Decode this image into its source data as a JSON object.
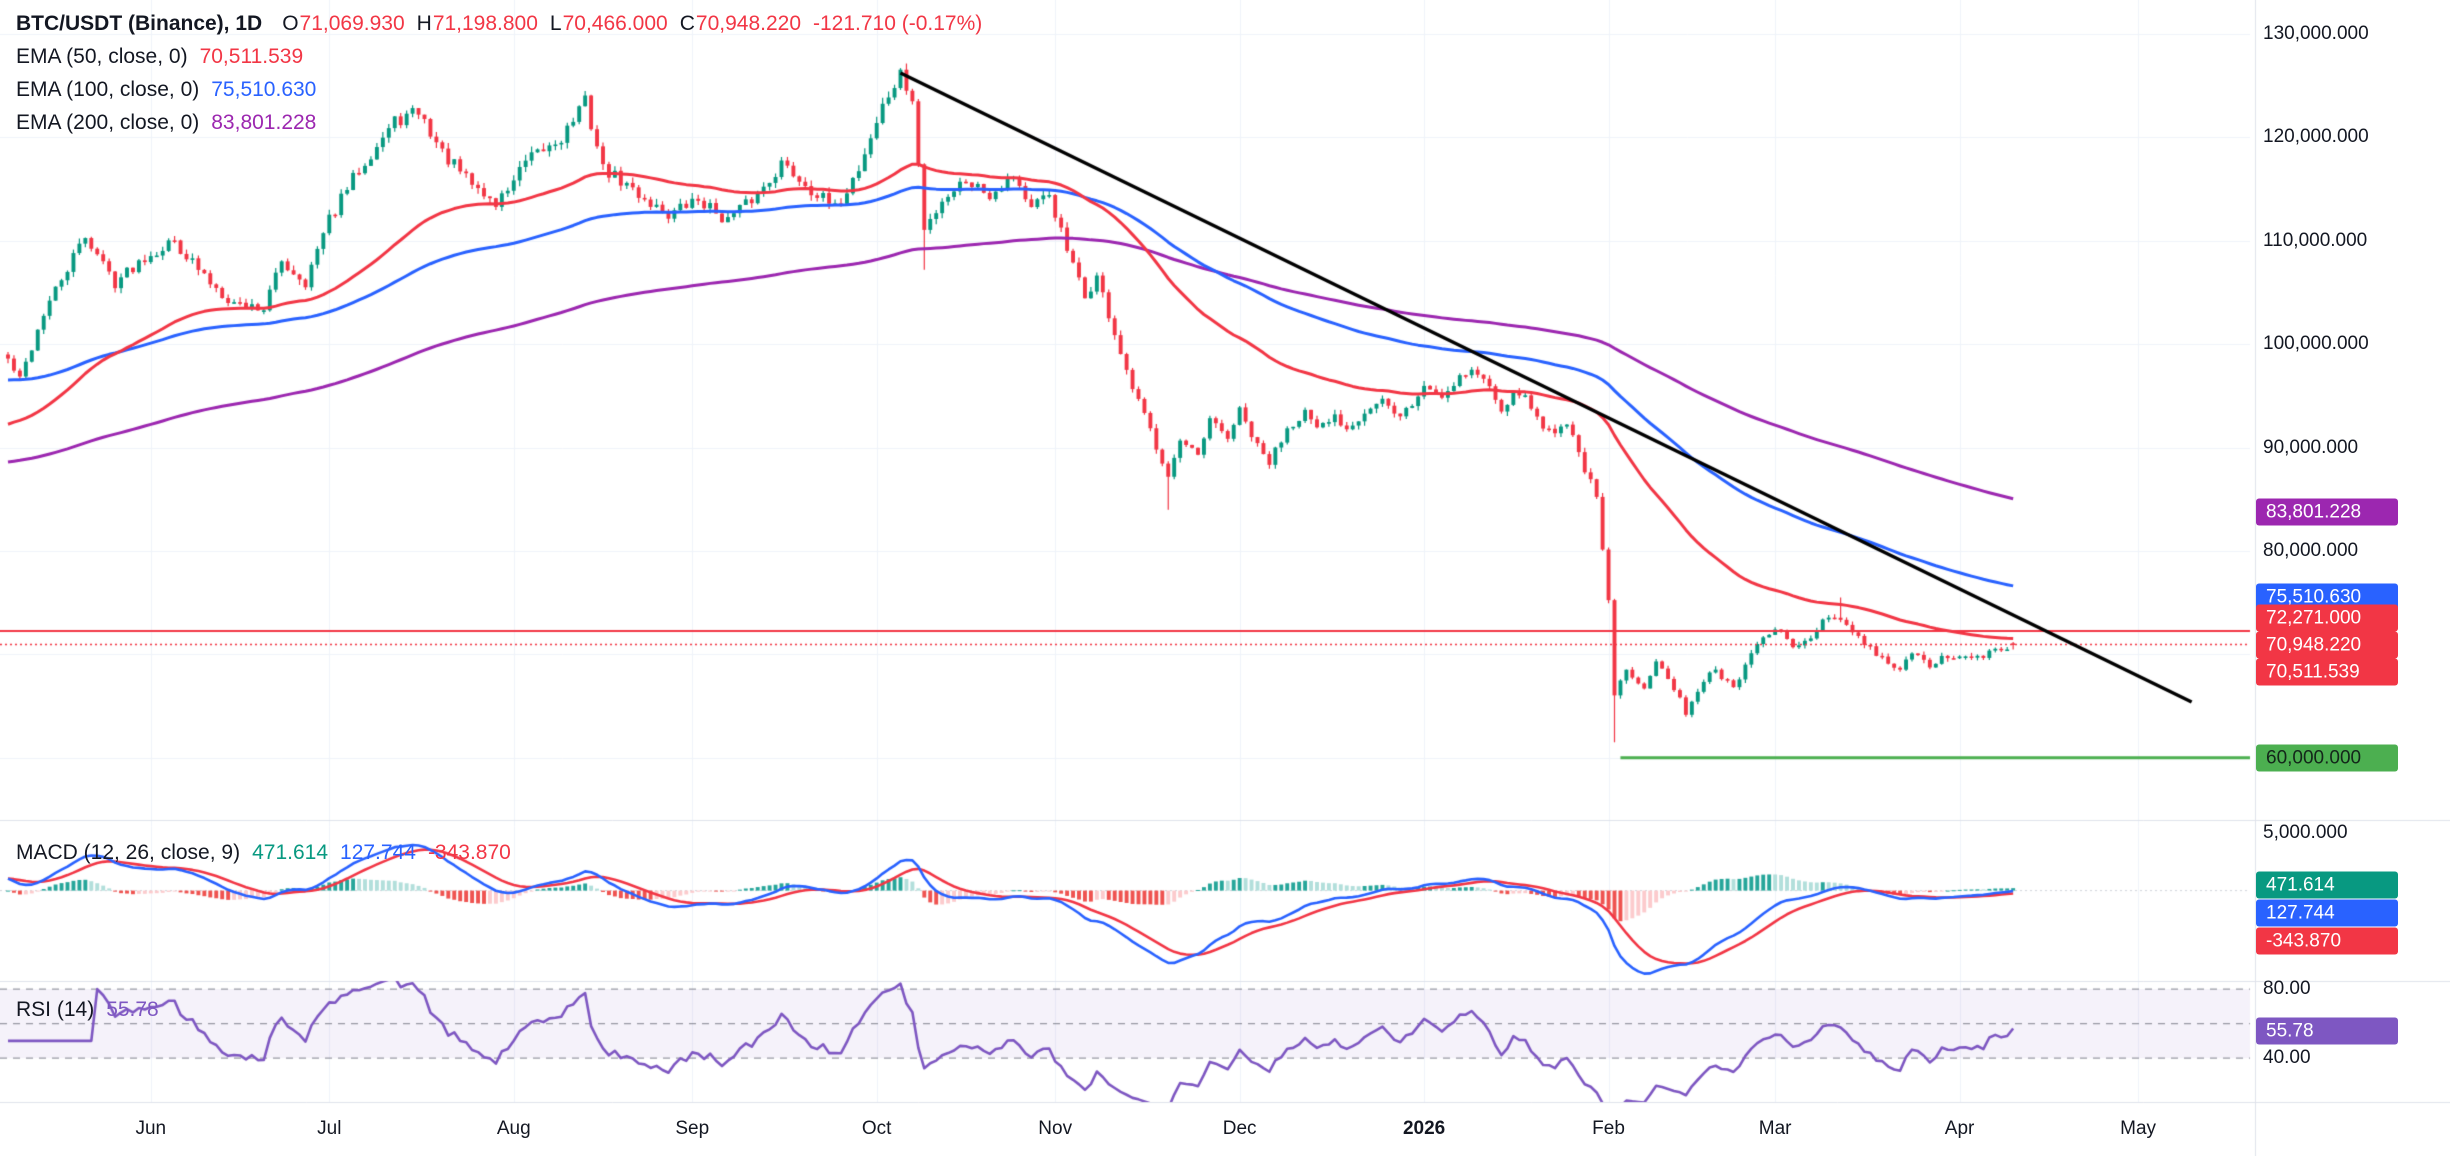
{
  "header": {
    "title": "BTC/USDT (Binance), 1D",
    "open_label": "O",
    "open": "71,069.930",
    "high_label": "H",
    "high": "71,198.800",
    "low_label": "L",
    "low": "70,466.000",
    "close_label": "C",
    "close": "70,948.220",
    "change": "-121.710 (-0.17%)"
  },
  "ema_legend": [
    {
      "label": "EMA (50, close, 0)",
      "value": "70,511.539",
      "color": "#f23645"
    },
    {
      "label": "EMA (100, close, 0)",
      "value": "75,510.630",
      "color": "#2962ff"
    },
    {
      "label": "EMA (200, close, 0)",
      "value": "83,801.228",
      "color": "#9c27b0"
    }
  ],
  "macd_legend": {
    "title": "MACD (12, 26, close, 9)",
    "hist": "471.614",
    "macd": "127.744",
    "signal": "-343.870"
  },
  "rsi_legend": {
    "title": "RSI (14)",
    "value": "55.78"
  },
  "axis_badges": {
    "price": [
      {
        "text": "83,801.228",
        "bg": "#9c27b0",
        "fg": "#ffffff",
        "price": 83801.228
      },
      {
        "text": "75,510.630",
        "bg": "#2962ff",
        "fg": "#ffffff",
        "price": 75510.63
      },
      {
        "text": "72,271.000",
        "bg": "#f23645",
        "fg": "#ffffff",
        "price": 72271.0,
        "stack": -1
      },
      {
        "text": "70,948.220",
        "bg": "#f23645",
        "fg": "#ffffff",
        "price": 70948.22,
        "stack": 0
      },
      {
        "text": "70,511.539",
        "bg": "#f23645",
        "fg": "#ffffff",
        "price": 70511.539,
        "stack": 1
      },
      {
        "text": "60,000.000",
        "bg": "#4caf50",
        "fg": "#13261a",
        "price": 60000.0
      }
    ],
    "macd": [
      {
        "text": "471.614",
        "bg": "#089981",
        "fg": "#ffffff",
        "value": 471.614
      },
      {
        "text": "127.744",
        "bg": "#2962ff",
        "fg": "#ffffff",
        "value": 127.744
      },
      {
        "text": "-343.870",
        "bg": "#f23645",
        "fg": "#ffffff",
        "value": -343.87
      }
    ],
    "rsi": {
      "text": "55.78",
      "bg": "#7e57c2",
      "fg": "#ffffff",
      "value": 55.78
    }
  },
  "colors": {
    "up": "#089981",
    "down": "#f23645",
    "ema50": "#f23645",
    "ema100": "#2962ff",
    "ema200": "#9c27b0",
    "macd": "#2962ff",
    "signal": "#f23645",
    "hist_grow_above": "#26a69a",
    "hist_fall_above": "#b2dfdb",
    "hist_grow_below": "#fccbcd",
    "hist_fall_below": "#ef5350",
    "rsi": "#7e57c2",
    "rsi_band": "rgba(126,87,194,0.08)",
    "rsi_level": "rgba(120,123,134,0.75)",
    "trendline": "#000000",
    "level_red": "#f23645",
    "level_green": "#4caf50",
    "grid": "#f0f3fa",
    "separator": "#e0e3eb",
    "axis_text": "#131722"
  },
  "chart_data": {
    "type": "candlestick",
    "title": "BTC/USDT (Binance)",
    "interval": "1D",
    "last_ohlc": {
      "open": 71069.93,
      "high": 71198.8,
      "low": 70466.0,
      "close": 70948.22,
      "change": -121.71,
      "change_pct": -0.17
    },
    "candles_count": 338,
    "seed": 42,
    "close_anchors": [
      [
        0,
        98500
      ],
      [
        2,
        96500
      ],
      [
        6,
        103000
      ],
      [
        13,
        110500
      ],
      [
        18,
        106000
      ],
      [
        23,
        108500
      ],
      [
        28,
        110000
      ],
      [
        33,
        106500
      ],
      [
        38,
        104000
      ],
      [
        43,
        103500
      ],
      [
        46,
        108000
      ],
      [
        50,
        106000
      ],
      [
        54,
        112000
      ],
      [
        59,
        117000
      ],
      [
        65,
        121500
      ],
      [
        69,
        122500
      ],
      [
        73,
        118500
      ],
      [
        77,
        116000
      ],
      [
        82,
        113500
      ],
      [
        87,
        117500
      ],
      [
        93,
        120000
      ],
      [
        97,
        123500
      ],
      [
        100,
        117000
      ],
      [
        106,
        114500
      ],
      [
        111,
        112500
      ],
      [
        116,
        114000
      ],
      [
        121,
        112000
      ],
      [
        126,
        114500
      ],
      [
        130,
        117500
      ],
      [
        134,
        115500
      ],
      [
        139,
        113000
      ],
      [
        143,
        117000
      ],
      [
        147,
        123000
      ],
      [
        150,
        126000
      ],
      [
        152,
        123500
      ],
      [
        154,
        111000
      ],
      [
        157,
        114000
      ],
      [
        161,
        116000
      ],
      [
        165,
        114500
      ],
      [
        169,
        116500
      ],
      [
        172,
        113000
      ],
      [
        175,
        114500
      ],
      [
        178,
        109000
      ],
      [
        181,
        104500
      ],
      [
        183,
        106500
      ],
      [
        186,
        101000
      ],
      [
        188,
        97000
      ],
      [
        191,
        93000
      ],
      [
        195,
        87500
      ],
      [
        197,
        90500
      ],
      [
        200,
        89000
      ],
      [
        202,
        92500
      ],
      [
        205,
        91000
      ],
      [
        207,
        93500
      ],
      [
        210,
        90000
      ],
      [
        212,
        88500
      ],
      [
        215,
        92000
      ],
      [
        218,
        93500
      ],
      [
        220,
        91500
      ],
      [
        223,
        93000
      ],
      [
        225,
        92000
      ],
      [
        228,
        93500
      ],
      [
        231,
        94500
      ],
      [
        233,
        93000
      ],
      [
        236,
        94000
      ],
      [
        238,
        96000
      ],
      [
        241,
        95000
      ],
      [
        244,
        97000
      ],
      [
        246,
        97500
      ],
      [
        249,
        96000
      ],
      [
        251,
        94000
      ],
      [
        254,
        95500
      ],
      [
        257,
        93000
      ],
      [
        259,
        91500
      ],
      [
        262,
        92500
      ],
      [
        264,
        89500
      ],
      [
        267,
        85000
      ],
      [
        269,
        75000
      ],
      [
        270,
        66000
      ],
      [
        272,
        68500
      ],
      [
        275,
        67000
      ],
      [
        277,
        69500
      ],
      [
        280,
        66500
      ],
      [
        282,
        64500
      ],
      [
        285,
        67500
      ],
      [
        287,
        68500
      ],
      [
        290,
        66500
      ],
      [
        292,
        69000
      ],
      [
        295,
        71500
      ],
      [
        298,
        72500
      ],
      [
        300,
        70500
      ],
      [
        303,
        71500
      ],
      [
        305,
        73000
      ],
      [
        308,
        73500
      ],
      [
        310,
        72000
      ],
      [
        313,
        70500
      ],
      [
        315,
        69500
      ],
      [
        318,
        68500
      ],
      [
        320,
        70000
      ],
      [
        323,
        69000
      ],
      [
        325,
        69500
      ],
      [
        327,
        69800
      ],
      [
        330,
        69500
      ],
      [
        333,
        70100
      ],
      [
        336,
        70500
      ],
      [
        337,
        70948.22
      ]
    ],
    "wick_events": [
      {
        "index": 150,
        "high": 126700
      },
      {
        "index": 154,
        "low": 107200
      },
      {
        "index": 195,
        "low": 84000
      },
      {
        "index": 270,
        "low": 61500
      },
      {
        "index": 308,
        "high": 75500
      }
    ],
    "overlays": [
      {
        "name": "EMA 50",
        "period": 50,
        "color": "#f23645",
        "seed": 92000,
        "last": 70511.539
      },
      {
        "name": "EMA 100",
        "period": 100,
        "color": "#2962ff",
        "seed": 96500,
        "last": 75510.63
      },
      {
        "name": "EMA 200",
        "period": 200,
        "color": "#9c27b0",
        "seed": 88500,
        "last": 83801.228
      }
    ],
    "indicators": {
      "macd": {
        "fast": 12,
        "slow": 26,
        "signal": 9,
        "last_hist": 471.614,
        "last_macd": 127.744,
        "last_signal": -343.87,
        "axis_tick": 5000
      },
      "rsi": {
        "period": 14,
        "last": 55.78,
        "bands": [
          80,
          60,
          40
        ],
        "axis_ticks": [
          80,
          40
        ]
      }
    },
    "levels": [
      {
        "type": "hline",
        "price": 72271.0,
        "color": "#f23645",
        "style": "solid"
      },
      {
        "type": "price_line",
        "price": 70948.22,
        "color": "#f23645",
        "style": "dotted"
      },
      {
        "type": "segment",
        "price": 60000.0,
        "from_index": 271,
        "color": "#4caf50",
        "style": "solid"
      },
      {
        "type": "trendline",
        "from": {
          "index": 150,
          "price": 126228
        },
        "to": {
          "index": 367,
          "price": 65400
        },
        "color": "#000000"
      }
    ],
    "x_axis": {
      "months": [
        {
          "label": "Jun",
          "index": 24
        },
        {
          "label": "Jul",
          "index": 54
        },
        {
          "label": "Aug",
          "index": 85
        },
        {
          "label": "Sep",
          "index": 115
        },
        {
          "label": "Oct",
          "index": 146
        },
        {
          "label": "Nov",
          "index": 176
        },
        {
          "label": "Dec",
          "index": 207
        },
        {
          "label": "2026",
          "index": 238,
          "bold": true
        },
        {
          "label": "Feb",
          "index": 269
        },
        {
          "label": "Mar",
          "index": 297
        },
        {
          "label": "Apr",
          "index": 328
        },
        {
          "label": "May",
          "index": 358
        }
      ]
    },
    "y_axis": {
      "ticks": [
        130000,
        120000,
        110000,
        100000,
        90000,
        80000
      ],
      "visible_range": [
        54000,
        133300
      ]
    }
  }
}
